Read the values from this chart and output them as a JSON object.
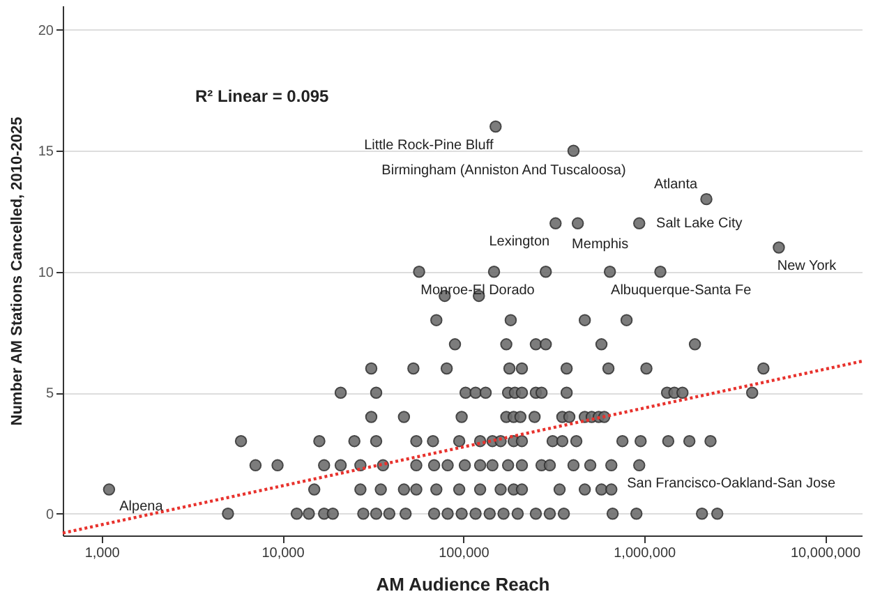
{
  "chart_data": {
    "type": "scatter",
    "xlabel": "AM Audience Reach",
    "ylabel": "Number AM Stations Cancelled, 2010-2025",
    "log": "x",
    "grid": "y",
    "xlim": [
      610,
      16000000
    ],
    "ylim": [
      -0.9,
      21
    ],
    "xticks": [
      {
        "value": 1000,
        "label": "1,000"
      },
      {
        "value": 10000,
        "label": "10,000"
      },
      {
        "value": 100000,
        "label": "100,000"
      },
      {
        "value": 1000000,
        "label": "1,000,000"
      },
      {
        "value": 10000000,
        "label": "10,000,000"
      }
    ],
    "yticks": [
      0,
      5,
      10,
      15,
      20
    ],
    "series": [
      {
        "color": "#6e6e6e",
        "marker": "circle",
        "x": [
          5000,
          12000,
          14000,
          17000,
          19000,
          28000,
          33000,
          39000,
          48000,
          69000,
          82000,
          98000,
          117000,
          140000,
          167000,
          200000,
          252000,
          301000,
          360000,
          670000,
          907000,
          2090000,
          2540000,
          1100,
          15000,
          27000,
          35000,
          47000,
          55000,
          71000,
          95000,
          124000,
          161000,
          190000,
          211000,
          341000,
          470000,
          581000,
          659000,
          7100,
          9400,
          17000,
          21000,
          27000,
          36000,
          55000,
          69000,
          82000,
          102000,
          124000,
          145000,
          177000,
          211000,
          271000,
          301000,
          407000,
          504000,
          659000,
          940000,
          5900,
          16000,
          25000,
          33000,
          55000,
          68000,
          95000,
          124000,
          145000,
          161000,
          190000,
          211000,
          312000,
          353000,
          422000,
          759000,
          957000,
          1360000,
          1780000,
          2330000,
          31000,
          47000,
          98000,
          173000,
          190000,
          207000,
          248000,
          353000,
          386000,
          470000,
          513000,
          561000,
          602000,
          21000,
          33000,
          103000,
          117000,
          133000,
          177000,
          193000,
          211000,
          252000,
          271000,
          373000,
          1340000,
          1470000,
          1630000,
          3960000,
          31000,
          53000,
          81000,
          180000,
          211000,
          373000,
          635000,
          1030000,
          4570000,
          90000,
          173000,
          252000,
          286000,
          581000,
          1910000,
          71000,
          183000,
          470000,
          800000,
          79000,
          122000,
          57000,
          148000,
          286000,
          647000,
          1230000,
          5560000,
          324000,
          430000,
          940000,
          2210000,
          407000,
          151000
        ],
        "values": [
          0,
          0,
          0,
          0,
          0,
          0,
          0,
          0,
          0,
          0,
          0,
          0,
          0,
          0,
          0,
          0,
          0,
          0,
          0,
          0,
          0,
          0,
          0,
          1,
          1,
          1,
          1,
          1,
          1,
          1,
          1,
          1,
          1,
          1,
          1,
          1,
          1,
          1,
          1,
          2,
          2,
          2,
          2,
          2,
          2,
          2,
          2,
          2,
          2,
          2,
          2,
          2,
          2,
          2,
          2,
          2,
          2,
          2,
          2,
          3,
          3,
          3,
          3,
          3,
          3,
          3,
          3,
          3,
          3,
          3,
          3,
          3,
          3,
          3,
          3,
          3,
          3,
          3,
          3,
          4,
          4,
          4,
          4,
          4,
          4,
          4,
          4,
          4,
          4,
          4,
          4,
          4,
          5,
          5,
          5,
          5,
          5,
          5,
          5,
          5,
          5,
          5,
          5,
          5,
          5,
          5,
          5,
          6,
          6,
          6,
          6,
          6,
          6,
          6,
          6,
          6,
          7,
          7,
          7,
          7,
          7,
          7,
          8,
          8,
          8,
          8,
          9,
          9,
          10,
          10,
          10,
          10,
          10,
          11,
          12,
          12,
          12,
          13,
          15,
          16
        ]
      },
      {
        "type": "line",
        "color": "#e8322d",
        "line_style": "dotted",
        "x": [
          610,
          16000000
        ],
        "values": [
          -0.8,
          6.3
        ]
      }
    ],
    "annotations": [
      "R² Linear = 0.095",
      {
        "text": "Alpena",
        "x": 1100,
        "y": 1
      },
      {
        "text": "Little Rock-Pine Bluff",
        "x": 151000,
        "y": 16
      },
      {
        "text": "Birmingham (Anniston And Tuscaloosa)",
        "x": 407000,
        "y": 15
      },
      {
        "text": "Atlanta",
        "x": 2210000,
        "y": 13
      },
      {
        "text": "Salt Lake City",
        "x": 940000,
        "y": 12
      },
      {
        "text": "Lexington",
        "x": 324000,
        "y": 12
      },
      {
        "text": "Memphis",
        "x": 430000,
        "y": 12
      },
      {
        "text": "New York",
        "x": 5560000,
        "y": 11
      },
      {
        "text": "Monroe-El Dorado",
        "x": 57000,
        "y": 10
      },
      {
        "text": "Albuquerque-Santa Fe",
        "x": 647000,
        "y": 10
      },
      {
        "text": "San Francisco-Oakland-San Jose",
        "x": 940000,
        "y": 2
      }
    ]
  }
}
